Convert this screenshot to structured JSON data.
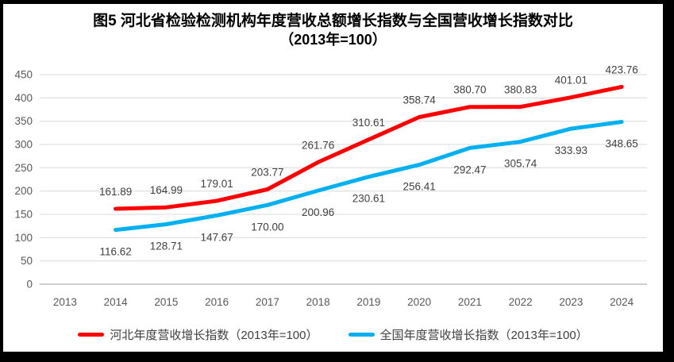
{
  "chart_data": {
    "type": "line",
    "title": "图5  河北省检验检测机构年度营收总额增长指数与全国营收增长指数对比",
    "subtitle": "（2013年=100）",
    "categories": [
      "2013",
      "2014",
      "2015",
      "2016",
      "2017",
      "2018",
      "2019",
      "2020",
      "2021",
      "2022",
      "2023",
      "2024"
    ],
    "ylim": [
      0,
      450
    ],
    "ytick_step": 50,
    "grid": true,
    "legend_position": "bottom",
    "colors": {
      "gridline": "#D9D9D9",
      "axis_line": "#BFBFBF",
      "tick_text": "#595959",
      "data_label_text": "#404040",
      "hebei_line": "#FF0000",
      "national_line": "#00B0F0"
    },
    "series": [
      {
        "name": "河北年度营收增长指数（2013年=100）",
        "color": "#FF0000",
        "label_position": "above",
        "values": [
          null,
          161.89,
          164.99,
          179.01,
          203.77,
          261.76,
          310.61,
          358.74,
          380.7,
          380.83,
          401.01,
          423.76
        ],
        "labels": [
          null,
          "161.89",
          "164.99",
          "179.01",
          "203.77",
          "261.76",
          "310.61",
          "358.74",
          "380.70",
          "380.83",
          "401.01",
          "423.76"
        ]
      },
      {
        "name": "全国年度营收增长指数（2013年=100）",
        "color": "#00B0F0",
        "label_position": "below",
        "values": [
          null,
          116.62,
          128.71,
          147.67,
          170.0,
          200.96,
          230.61,
          256.41,
          292.47,
          305.74,
          333.93,
          348.65
        ],
        "labels": [
          null,
          "116.62",
          "128.71",
          "147.67",
          "170.00",
          "200.96",
          "230.61",
          "256.41",
          "292.47",
          "305.74",
          "333.93",
          "348.65"
        ]
      }
    ]
  }
}
